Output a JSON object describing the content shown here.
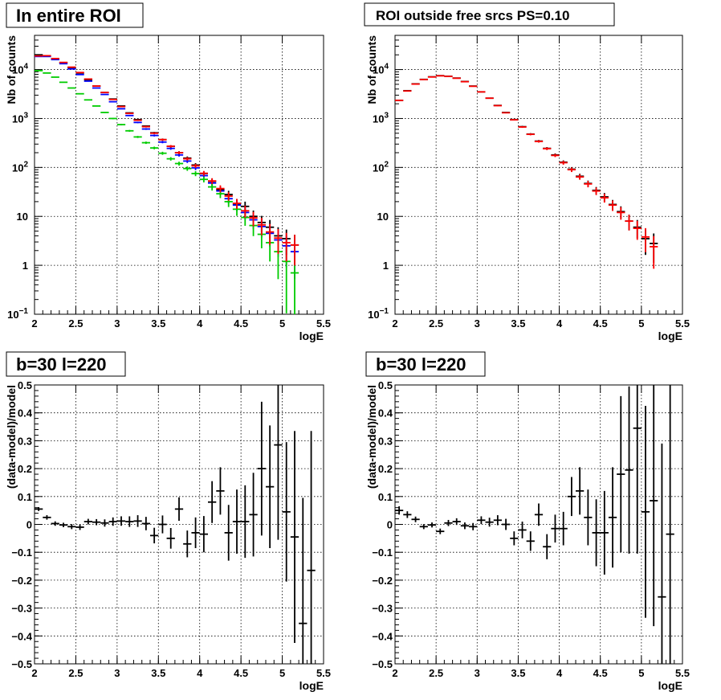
{
  "chart_data": [
    {
      "type": "scatter",
      "title": "In entire ROI",
      "xlabel": "logE",
      "ylabel": "Nb of counts",
      "xlim": [
        2,
        5.5
      ],
      "ylim": [
        0.1,
        50000
      ],
      "yscale": "log",
      "grid": true,
      "x_ticks": [
        "2",
        "2.5",
        "3",
        "3.5",
        "4",
        "4.5",
        "5",
        "5.5"
      ],
      "y_ticks": [
        {
          "value": 0.1,
          "label": "10",
          "exp": "−1"
        },
        {
          "value": 1,
          "label": "1",
          "exp": ""
        },
        {
          "value": 10,
          "label": "10",
          "exp": ""
        },
        {
          "value": 100,
          "label": "10",
          "exp": "2"
        },
        {
          "value": 1000,
          "label": "10",
          "exp": "3"
        },
        {
          "value": 10000,
          "label": "10",
          "exp": "4"
        }
      ],
      "series": [
        {
          "color": "#000000",
          "values": [
            20000,
            19000,
            16500,
            13800,
            11000,
            8500,
            6200,
            4600,
            3400,
            2500,
            1800,
            1300,
            950,
            700,
            510,
            370,
            270,
            200,
            155,
            112,
            75,
            52,
            35,
            28,
            18,
            16,
            10,
            7.5,
            6,
            4,
            3.5,
            2.6
          ]
        },
        {
          "color": "#0000ff",
          "values": [
            18500,
            18500,
            16000,
            13200,
            10300,
            7900,
            5800,
            4200,
            3100,
            2200,
            1580,
            1150,
            830,
            610,
            450,
            330,
            245,
            180,
            135,
            98,
            68,
            48,
            33,
            23,
            17,
            12,
            8.5,
            6.2,
            4.5,
            3.3,
            2.5,
            1.9
          ]
        },
        {
          "color": "#00cc00",
          "values": [
            9500,
            8500,
            7000,
            5500,
            4200,
            3200,
            2400,
            1800,
            1330,
            1000,
            750,
            560,
            420,
            320,
            250,
            195,
            150,
            120,
            95,
            75,
            57,
            40,
            29,
            20,
            14,
            9.5,
            6.5,
            4.3,
            2.9,
            1.9,
            1.2,
            0.7
          ]
        },
        {
          "color": "#ff0000",
          "values": [
            19000,
            19200,
            16800,
            14000,
            11200,
            8700,
            6400,
            4600,
            3400,
            2450,
            1750,
            1270,
            920,
            680,
            500,
            370,
            270,
            200,
            150,
            108,
            76,
            53,
            37,
            26,
            18.5,
            13,
            9.3,
            6.7,
            4.8,
            3.6,
            2.9,
            2.6
          ]
        }
      ]
    },
    {
      "type": "scatter",
      "title": "ROI outside free srcs PS=0.10",
      "xlabel": "logE",
      "ylabel": "Nb of counts",
      "xlim": [
        2,
        5.5
      ],
      "ylim": [
        0.1,
        50000
      ],
      "yscale": "log",
      "grid": true,
      "x_ticks": [
        "2",
        "2.5",
        "3",
        "3.5",
        "4",
        "4.5",
        "5",
        "5.5"
      ],
      "y_ticks": [
        {
          "value": 0.1,
          "label": "10",
          "exp": "−1"
        },
        {
          "value": 1,
          "label": "1",
          "exp": ""
        },
        {
          "value": 10,
          "label": "10",
          "exp": ""
        },
        {
          "value": 100,
          "label": "10",
          "exp": "2"
        },
        {
          "value": 1000,
          "label": "10",
          "exp": "3"
        },
        {
          "value": 10000,
          "label": "10",
          "exp": "4"
        }
      ],
      "series": [
        {
          "color": "#000000",
          "values": [
            2350,
            3700,
            5100,
            6300,
            7100,
            7500,
            7300,
            6700,
            5700,
            4600,
            3500,
            2600,
            1850,
            1330,
            950,
            680,
            480,
            345,
            245,
            180,
            128,
            92,
            66,
            47,
            34,
            25,
            17.5,
            12.5,
            8,
            6,
            3.5,
            2.8
          ]
        },
        {
          "color": "#ff0000",
          "values": [
            2350,
            3650,
            5050,
            6250,
            7050,
            7450,
            7250,
            6650,
            5650,
            4550,
            3500,
            2600,
            1830,
            1310,
            940,
            670,
            475,
            340,
            242,
            176,
            125,
            90,
            64,
            46,
            33,
            24,
            17,
            12,
            8,
            5.7,
            3.8,
            2.4
          ]
        }
      ]
    },
    {
      "type": "scatter",
      "title": "b=30 l=220",
      "xlabel": "logE",
      "ylabel": "(data-model)/model",
      "xlim": [
        2,
        5.5
      ],
      "ylim": [
        -0.5,
        0.5
      ],
      "grid": true,
      "x_ticks": [
        "2",
        "2.5",
        "3",
        "3.5",
        "4",
        "4.5",
        "5",
        "5.5"
      ],
      "y_ticks": [
        "0.5",
        "0.4",
        "0.3",
        "0.2",
        "0.1",
        "0",
        "−0.1",
        "−0.2",
        "−0.3",
        "−0.4",
        "−0.5"
      ],
      "series": [
        {
          "color": "#000000",
          "values": [
            0.055,
            0.025,
            0.003,
            -0.002,
            -0.008,
            -0.01,
            0.01,
            0.008,
            0.005,
            0.01,
            0.012,
            0.01,
            0.012,
            0.003,
            -0.04,
            0.0,
            -0.05,
            0.055,
            -0.07,
            -0.03,
            -0.035,
            0.08,
            0.12,
            -0.03,
            0.01,
            0.01,
            0.035,
            0.2,
            0.135,
            0.285,
            0.045,
            -0.045,
            -0.355,
            -0.165
          ],
          "errors": [
            0.007,
            0.008,
            0.008,
            0.008,
            0.009,
            0.01,
            0.01,
            0.011,
            0.013,
            0.015,
            0.017,
            0.019,
            0.021,
            0.024,
            0.028,
            0.032,
            0.037,
            0.042,
            0.048,
            0.055,
            0.065,
            0.075,
            0.085,
            0.1,
            0.115,
            0.13,
            0.15,
            0.24,
            0.22,
            0.34,
            0.25,
            0.38,
            0.45,
            0.5
          ]
        }
      ]
    },
    {
      "type": "scatter",
      "title": "b=30 l=220",
      "xlabel": "logE",
      "ylabel": "(data-model)/model",
      "xlim": [
        2,
        5.5
      ],
      "ylim": [
        -0.5,
        0.5
      ],
      "grid": true,
      "x_ticks": [
        "2",
        "2.5",
        "3",
        "3.5",
        "4",
        "4.5",
        "5",
        "5.5"
      ],
      "y_ticks": [
        "0.5",
        "0.4",
        "0.3",
        "0.2",
        "0.1",
        "0",
        "−0.1",
        "−0.2",
        "−0.3",
        "−0.4",
        "−0.5"
      ],
      "series": [
        {
          "color": "#000000",
          "values": [
            0.05,
            0.035,
            0.018,
            -0.008,
            -0.002,
            -0.025,
            0.005,
            0.01,
            -0.005,
            -0.008,
            0.015,
            0.008,
            0.015,
            0.0,
            -0.05,
            -0.02,
            -0.06,
            0.035,
            -0.08,
            -0.015,
            -0.015,
            0.1,
            0.12,
            0.025,
            -0.03,
            -0.03,
            0.025,
            0.18,
            0.195,
            0.345,
            0.045,
            0.085,
            -0.26,
            -0.035
          ],
          "errors": [
            0.015,
            0.012,
            0.01,
            0.009,
            0.009,
            0.01,
            0.011,
            0.012,
            0.012,
            0.013,
            0.014,
            0.016,
            0.018,
            0.02,
            0.025,
            0.03,
            0.035,
            0.04,
            0.045,
            0.05,
            0.06,
            0.07,
            0.085,
            0.1,
            0.12,
            0.15,
            0.18,
            0.28,
            0.3,
            0.45,
            0.38,
            0.45,
            0.55,
            0.55
          ]
        }
      ]
    }
  ]
}
